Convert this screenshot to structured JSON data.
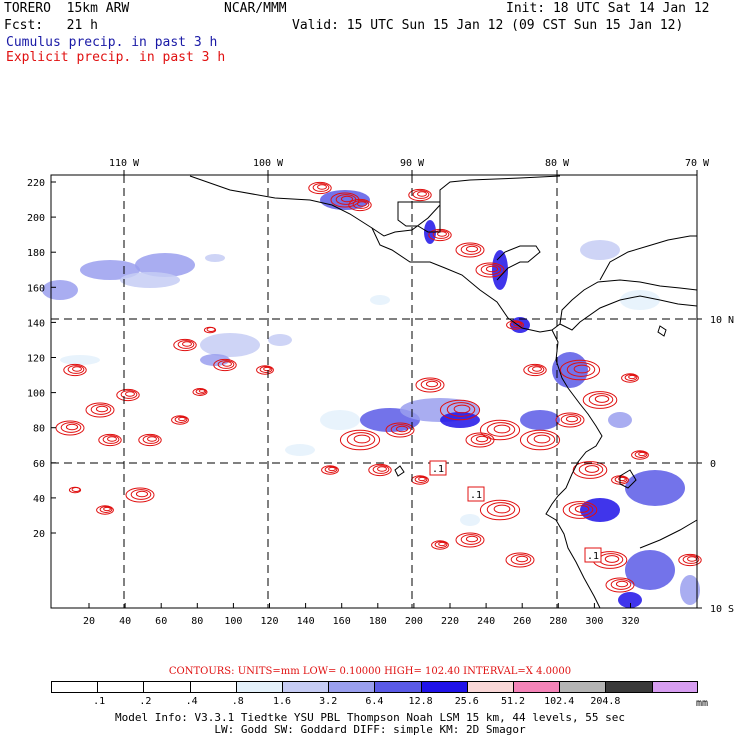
{
  "header": {
    "model": "TORERO  15km ARW",
    "org": "NCAR/MMM",
    "init": "Init: 18 UTC Sat 14 Jan 12",
    "fcst": "Fcst:   21 h",
    "valid": "Valid: 15 UTC Sun 15 Jan 12 (09 CST Sun 15 Jan 12)",
    "cumulus": "Cumulus precip. in past 3 h",
    "explicit": "Explicit precip. in past 3 h"
  },
  "map": {
    "lon_labels": [
      "110 W",
      "100 W",
      "90 W",
      "80 W",
      "70 W"
    ],
    "lat_labels": [
      "10 N",
      "0",
      "10 S"
    ],
    "y_ticks": [
      "220",
      "200",
      "180",
      "160",
      "140",
      "120",
      "100",
      "80",
      "60",
      "40",
      "20"
    ],
    "x_ticks": [
      "20",
      "40",
      "60",
      "80",
      "100",
      "120",
      "140",
      "160",
      "180",
      "200",
      "220",
      "240",
      "260",
      "280",
      "300",
      "320"
    ],
    "low_labels": [
      ".1",
      ".1",
      ".1"
    ]
  },
  "contours_line": "CONTOURS:  UNITS=mm  LOW= 0.10000      HIGH=  102.40      INTERVAL=X  4.0000",
  "colorbar": {
    "unit": "mm",
    "ticks": [
      ".1",
      ".2",
      ".4",
      ".8",
      "1.6",
      "3.2",
      "6.4",
      "12.8",
      "25.6",
      "51.2",
      "102.4",
      "204.8"
    ],
    "colors": [
      "#ffffff",
      "#ffffff",
      "#ffffff",
      "#ffffff",
      "#e4f1fb",
      "#c6ccf4",
      "#9a9fee",
      "#5a5ae6",
      "#1f12e8",
      "#f9d7d7",
      "#f484b8",
      "#b4b4b4",
      "#3a3a3a",
      "#d79ef1"
    ]
  },
  "model_info": {
    "line1": "Model Info: V3.3.1   Tiedtke YSU PBL  Thompson     Noah LSM  15 km,   44 levels,   55 sec",
    "line2": "LW: Godd SW: Goddard DIFF: simple KM: 2D Smagor"
  }
}
